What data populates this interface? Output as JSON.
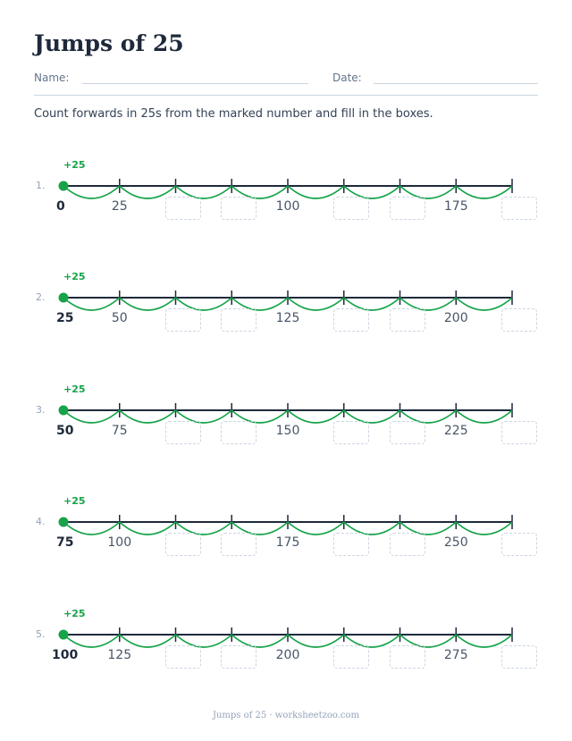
{
  "title": "Jumps of 25",
  "header": {
    "name_label": "Name:",
    "date_label": "Date:"
  },
  "instructions": "Count forwards in 25s from the marked number and fill in the boxes.",
  "jump_label": "+25",
  "colors": {
    "jump": "#16a34a",
    "line": "#1e293b",
    "box_border": "#cbd5e1"
  },
  "problems": [
    {
      "number": "1.",
      "start": "0",
      "ticks": [
        "0",
        "25",
        "",
        "",
        "100",
        "",
        "",
        "175",
        ""
      ]
    },
    {
      "number": "2.",
      "start": "25",
      "ticks": [
        "25",
        "50",
        "",
        "",
        "125",
        "",
        "",
        "200",
        ""
      ]
    },
    {
      "number": "3.",
      "start": "50",
      "ticks": [
        "50",
        "75",
        "",
        "",
        "150",
        "",
        "",
        "225",
        ""
      ]
    },
    {
      "number": "4.",
      "start": "75",
      "ticks": [
        "75",
        "100",
        "",
        "",
        "175",
        "",
        "",
        "250",
        ""
      ]
    },
    {
      "number": "5.",
      "start": "100",
      "ticks": [
        "100",
        "125",
        "",
        "",
        "200",
        "",
        "",
        "275",
        ""
      ]
    }
  ],
  "footer": "Jumps of 25 · worksheetzoo.com"
}
